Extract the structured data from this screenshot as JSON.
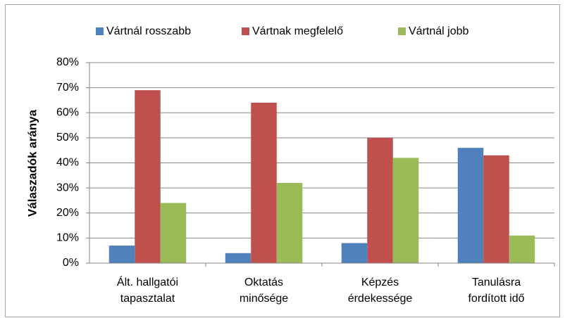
{
  "chart_data": {
    "type": "bar",
    "y_label": "Válaszadók aránya",
    "categories": [
      [
        "Ált. hallgatói",
        "tapasztalat"
      ],
      [
        "Oktatás",
        "minősége"
      ],
      [
        "Képzés",
        "érdekessége"
      ],
      [
        "Tanulásra",
        "fordított idő"
      ]
    ],
    "series": [
      {
        "name": "Vártnál rosszabb",
        "color": "#4f81bd",
        "values": [
          7,
          4,
          8,
          46
        ]
      },
      {
        "name": "Vártnak megfelelő",
        "color": "#c0504d",
        "values": [
          69,
          64,
          50,
          43
        ]
      },
      {
        "name": "Vártnál jobb",
        "color": "#9bbb59",
        "values": [
          24,
          32,
          42,
          11
        ]
      }
    ],
    "ylim": [
      0,
      80
    ],
    "yticks": [
      {
        "value": 0,
        "label": "0%"
      },
      {
        "value": 10,
        "label": "10%"
      },
      {
        "value": 20,
        "label": "20%"
      },
      {
        "value": 30,
        "label": "30%"
      },
      {
        "value": 40,
        "label": "40%"
      },
      {
        "value": 50,
        "label": "50%"
      },
      {
        "value": 60,
        "label": "60%"
      },
      {
        "value": 70,
        "label": "70%"
      },
      {
        "value": 80,
        "label": "80%"
      }
    ],
    "grid": true,
    "legend": "top"
  }
}
